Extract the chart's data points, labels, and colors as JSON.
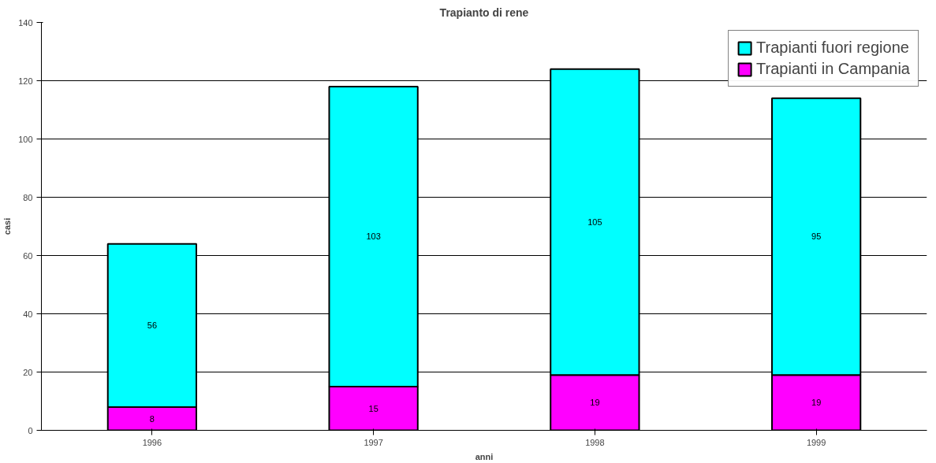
{
  "chart_data": {
    "type": "bar",
    "title": "Trapianto di rene",
    "xlabel": "anni",
    "ylabel": "casi",
    "categories": [
      "1996",
      "1997",
      "1998",
      "1999"
    ],
    "stacked": true,
    "data_labels": true,
    "series": [
      {
        "name": "Trapianti in Campania",
        "color": "#ff00ff",
        "values": [
          8,
          15,
          19,
          19
        ]
      },
      {
        "name": "Trapianti fuori regione",
        "color": "#00ffff",
        "values": [
          56,
          103,
          105,
          95
        ]
      }
    ],
    "ylim": [
      0,
      140
    ],
    "yticks": [
      0,
      20,
      40,
      60,
      80,
      100,
      120,
      140
    ],
    "grid": "y",
    "legend": "top right"
  }
}
